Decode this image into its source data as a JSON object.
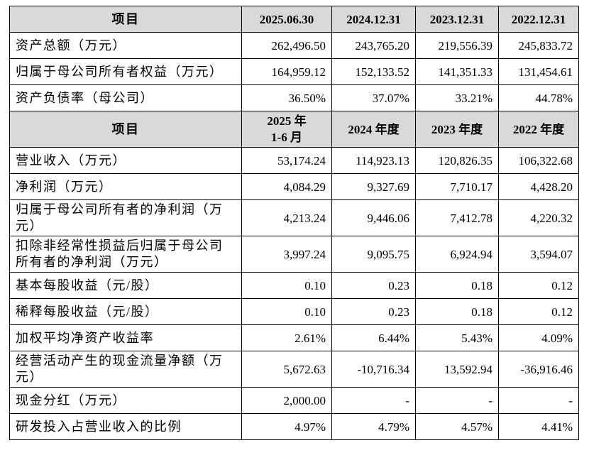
{
  "table": {
    "sections": [
      {
        "header": [
          "项目",
          "2025.06.30",
          "2024.12.31",
          "2023.12.31",
          "2022.12.31"
        ],
        "rows": [
          [
            "资产总额（万元）",
            "262,496.50",
            "243,765.20",
            "219,556.39",
            "245,833.72"
          ],
          [
            "归属于母公司所有者权益（万元）",
            "164,959.12",
            "152,133.52",
            "141,351.33",
            "131,454.61"
          ],
          [
            "资产负债率（母公司）",
            "36.50%",
            "37.07%",
            "33.21%",
            "44.78%"
          ]
        ]
      },
      {
        "header": [
          "项目",
          "2025 年\n1-6 月",
          "2024 年度",
          "2023 年度",
          "2022 年度"
        ],
        "rows": [
          [
            "营业收入（万元）",
            "53,174.24",
            "114,923.13",
            "120,826.35",
            "106,322.68"
          ],
          [
            "净利润（万元）",
            "4,084.29",
            "9,327.69",
            "7,710.17",
            "4,428.20"
          ],
          [
            "归属于母公司所有者的净利润（万元）",
            "4,213.24",
            "9,446.06",
            "7,412.78",
            "4,220.32"
          ],
          [
            "扣除非经常性损益后归属于母公司所有者的净利润（万元）",
            "3,997.24",
            "9,095.75",
            "6,924.94",
            "3,594.07"
          ],
          [
            "基本每股收益（元/股）",
            "0.10",
            "0.23",
            "0.18",
            "0.12"
          ],
          [
            "稀释每股收益（元/股）",
            "0.10",
            "0.23",
            "0.18",
            "0.12"
          ],
          [
            "加权平均净资产收益率",
            "2.61%",
            "6.44%",
            "5.43%",
            "4.09%"
          ],
          [
            "经营活动产生的现金流量净额（万元）",
            "5,672.63",
            "-10,716.34",
            "13,592.94",
            "-36,916.46"
          ],
          [
            "现金分红（万元）",
            "2,000.00",
            "-",
            "-",
            "-"
          ],
          [
            "研发投入占营业收入的比例",
            "4.97%",
            "4.79%",
            "4.57%",
            "4.41%"
          ]
        ]
      }
    ]
  }
}
